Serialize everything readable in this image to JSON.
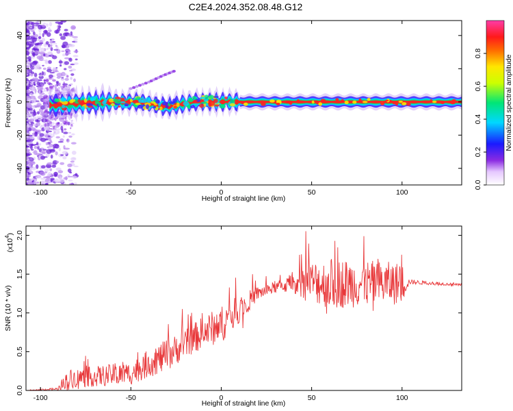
{
  "title": "C2E4.2024.352.08.48.G12",
  "chart_data": [
    {
      "type": "heatmap",
      "xlabel": "Height of straight line (km)",
      "ylabel": "Frequency (Hz)",
      "xlim": [
        -108,
        133
      ],
      "ylim": [
        -50,
        49
      ],
      "xticks": [
        -100,
        -50,
        0,
        50,
        100
      ],
      "yticks": [
        -40,
        -20,
        0,
        20,
        40
      ],
      "colorbar": {
        "label": "Normalized spectral amplitude",
        "range": [
          0,
          1
        ],
        "ticks": [
          "0.0",
          "0.2",
          "0.4",
          "0.6",
          "0.8"
        ],
        "tick_values": [
          0,
          0.2,
          0.4,
          0.6,
          0.8
        ],
        "colormap": "rainbow (white-purple-blue-cyan-green-yellow-red-pink)"
      },
      "ridge": [
        {
          "x": -92,
          "y": -2
        },
        {
          "x": -80,
          "y": -1
        },
        {
          "x": -60,
          "y": 0
        },
        {
          "x": -45,
          "y": 0
        },
        {
          "x": -35,
          "y": -2
        },
        {
          "x": -30,
          "y": -3
        },
        {
          "x": -25,
          "y": -2
        },
        {
          "x": -15,
          "y": 0
        },
        {
          "x": 0,
          "y": 0
        },
        {
          "x": 20,
          "y": 0
        },
        {
          "x": 60,
          "y": 0
        },
        {
          "x": 100,
          "y": 0
        },
        {
          "x": 133,
          "y": 0
        }
      ],
      "secondary_streak": [
        {
          "x": -50,
          "y": 8
        },
        {
          "x": -40,
          "y": 12
        },
        {
          "x": -32,
          "y": 16
        },
        {
          "x": -25,
          "y": 19
        }
      ]
    },
    {
      "type": "line",
      "xlabel": "Height of straight line (km)",
      "ylabel": "SNR (10 * v/v)",
      "y_multiplier": "(x10⁴)",
      "y_multiplier_base": "(x10",
      "y_multiplier_exp": "4",
      "y_multiplier_close": ")",
      "xlim": [
        -108,
        133
      ],
      "ylim": [
        0,
        2.12
      ],
      "xticks": [
        -100,
        -50,
        0,
        50,
        100
      ],
      "yticks": [
        0.0,
        0.5,
        1.0,
        1.5,
        2.0
      ],
      "ytick_labels": [
        "0.0",
        "0.5",
        "1.0",
        "1.5",
        "2.0"
      ],
      "color": "#e8383a",
      "envelope": [
        {
          "x": -108,
          "base": 0.0,
          "amp": 0.0
        },
        {
          "x": -90,
          "base": 0.02,
          "amp": 0.03
        },
        {
          "x": -85,
          "base": 0.15,
          "amp": 0.2
        },
        {
          "x": -70,
          "base": 0.18,
          "amp": 0.22
        },
        {
          "x": -50,
          "base": 0.22,
          "amp": 0.25
        },
        {
          "x": -40,
          "base": 0.35,
          "amp": 0.3
        },
        {
          "x": -30,
          "base": 0.45,
          "amp": 0.35
        },
        {
          "x": -20,
          "base": 0.6,
          "amp": 0.3
        },
        {
          "x": -10,
          "base": 0.75,
          "amp": 0.35
        },
        {
          "x": 0,
          "base": 0.85,
          "amp": 0.4
        },
        {
          "x": 10,
          "base": 1.05,
          "amp": 0.3
        },
        {
          "x": 20,
          "base": 1.25,
          "amp": 0.15
        },
        {
          "x": 30,
          "base": 1.33,
          "amp": 0.12
        },
        {
          "x": 40,
          "base": 1.38,
          "amp": 0.2
        },
        {
          "x": 50,
          "base": 1.4,
          "amp": 0.45
        },
        {
          "x": 60,
          "base": 1.38,
          "amp": 0.55
        },
        {
          "x": 80,
          "base": 1.38,
          "amp": 0.5
        },
        {
          "x": 100,
          "base": 1.38,
          "amp": 0.45
        },
        {
          "x": 104,
          "base": 1.4,
          "amp": 0.05
        },
        {
          "x": 133,
          "base": 1.36,
          "amp": 0.02
        }
      ]
    }
  ]
}
